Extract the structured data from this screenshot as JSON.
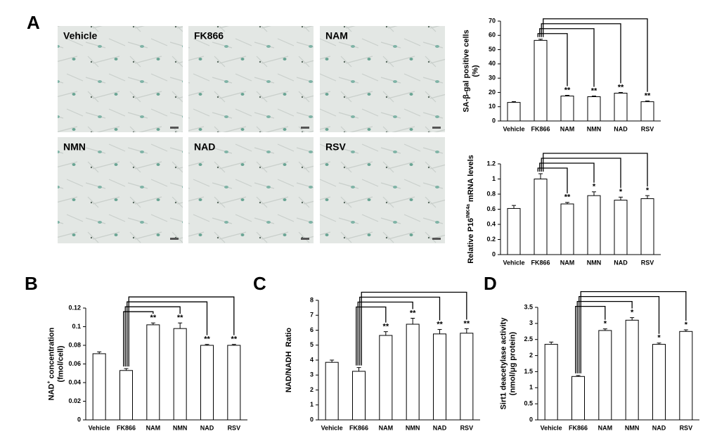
{
  "panel_labels": [
    "A",
    "B",
    "C",
    "D"
  ],
  "images": [
    {
      "label": "Vehicle"
    },
    {
      "label": "FK866"
    },
    {
      "label": "NAM"
    },
    {
      "label": "NMN"
    },
    {
      "label": "NAD"
    },
    {
      "label": "RSV"
    }
  ],
  "chart_data": [
    {
      "type": "bar",
      "ylabel": [
        [
          "SA-β-gal positive cells"
        ],
        [
          "(%)"
        ]
      ],
      "categories": [
        "Vehicle",
        "FK866",
        "NAM",
        "NMN",
        "NAD",
        "RSV"
      ],
      "values": [
        13,
        56.5,
        17.5,
        17,
        19.5,
        13.5
      ],
      "errors": [
        0.6,
        0.8,
        0.5,
        0.5,
        0.5,
        0.5
      ],
      "annotations": [
        null,
        null,
        "**",
        "**",
        "**",
        "**"
      ],
      "color": "#ffffff",
      "ylim": [
        0,
        70
      ],
      "yticks": [
        0,
        10,
        20,
        30,
        40,
        50,
        60,
        70
      ]
    },
    {
      "type": "bar",
      "ylabel": [
        [
          "Relative P16",
          {
            "sup": "INK4a"
          },
          " mRNA levels"
        ]
      ],
      "categories": [
        "Vehicle",
        "FK866",
        "NAM",
        "NMN",
        "NAD",
        "RSV"
      ],
      "values": [
        0.61,
        1.0,
        0.67,
        0.78,
        0.72,
        0.74
      ],
      "errors": [
        0.04,
        0.07,
        0.02,
        0.05,
        0.04,
        0.04
      ],
      "annotations": [
        null,
        null,
        "**",
        "*",
        "*",
        "*"
      ],
      "color": "#ffffff",
      "ylim": [
        0,
        1.2
      ],
      "yticks": [
        0,
        0.2,
        0.4,
        0.6,
        0.8,
        1,
        1.2
      ]
    },
    {
      "type": "bar",
      "ylabel": [
        [
          "NAD",
          {
            "sup": "+"
          },
          " concentration"
        ],
        [
          "(fmol/cell)"
        ]
      ],
      "categories": [
        "Vehicle",
        "FK866",
        "NAM",
        "NMN",
        "NAD",
        "RSV"
      ],
      "values": [
        0.071,
        0.053,
        0.102,
        0.098,
        0.08,
        0.08
      ],
      "errors": [
        0.002,
        0.002,
        0.002,
        0.006,
        0.001,
        0.001
      ],
      "annotations": [
        null,
        null,
        "**",
        "**",
        "**",
        "**"
      ],
      "color": "#ffffff",
      "ylim": [
        0,
        0.12
      ],
      "yticks": [
        0,
        0.02,
        0.04,
        0.06,
        0.08,
        0.1,
        0.12
      ]
    },
    {
      "type": "bar",
      "ylabel": [
        [
          "NAD/NADH  Ratio"
        ]
      ],
      "categories": [
        "Vehicle",
        "FK866",
        "NAM",
        "NMN",
        "NAD",
        "RSV"
      ],
      "values": [
        3.85,
        3.25,
        5.65,
        6.4,
        5.75,
        5.8
      ],
      "errors": [
        0.15,
        0.25,
        0.25,
        0.4,
        0.3,
        0.3
      ],
      "annotations": [
        null,
        null,
        "**",
        "**",
        "**",
        "**"
      ],
      "color": "#ffffff",
      "ylim": [
        0,
        8
      ],
      "yticks": [
        0,
        1,
        2,
        3,
        4,
        5,
        6,
        7,
        8
      ]
    },
    {
      "type": "bar",
      "ylabel": [
        [
          "Sirt1 deacetylase activity"
        ],
        [
          "(nmol/μg protein)"
        ]
      ],
      "categories": [
        "Vehicle",
        "FK866",
        "NAM",
        "NMN",
        "NAD",
        "RSV"
      ],
      "values": [
        2.35,
        1.35,
        2.78,
        3.1,
        2.35,
        2.75
      ],
      "errors": [
        0.07,
        0.03,
        0.05,
        0.08,
        0.04,
        0.05
      ],
      "annotations": [
        null,
        null,
        "*",
        "*",
        "*",
        "*"
      ],
      "color": "#ffffff",
      "ylim": [
        0,
        3.5
      ],
      "yticks": [
        0,
        0.5,
        1,
        1.5,
        2,
        2.5,
        3,
        3.5
      ]
    }
  ]
}
